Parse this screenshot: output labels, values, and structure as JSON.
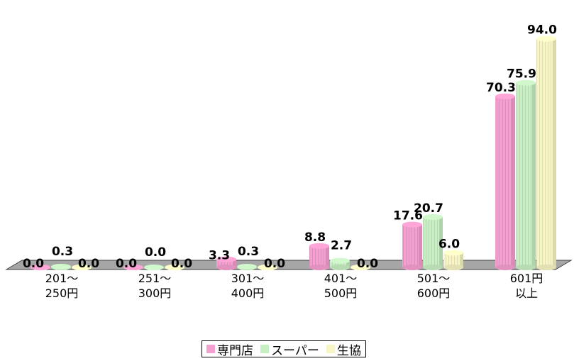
{
  "chart_data": {
    "type": "bar",
    "categories": [
      [
        "201〜",
        "250円"
      ],
      [
        "251〜",
        "300円"
      ],
      [
        "301〜",
        "400円"
      ],
      [
        "401〜",
        "500円"
      ],
      [
        "501〜",
        "600円"
      ],
      [
        "601円",
        "以上"
      ]
    ],
    "series": [
      {
        "name": "専門店",
        "values": [
          0.0,
          0.0,
          3.3,
          8.8,
          17.6,
          70.3
        ],
        "labels": [
          "0.0",
          "0.0",
          "3.3",
          "8.8",
          "17.6",
          "70.3"
        ],
        "color": "#f59fd0"
      },
      {
        "name": "スーパー",
        "values": [
          0.3,
          0.0,
          0.3,
          2.7,
          20.7,
          75.9
        ],
        "labels": [
          "0.3",
          "0.0",
          "0.3",
          "2.7",
          "20.7",
          "75.9"
        ],
        "color": "#c8eec4"
      },
      {
        "name": "生協",
        "values": [
          0.0,
          0.0,
          0.0,
          0.0,
          6.0,
          94.0
        ],
        "labels": [
          "0.0",
          "0.0",
          "0.0",
          "0.0",
          "6.0",
          "94.0"
        ],
        "color": "#f7f5c4"
      }
    ],
    "ylim": [
      0,
      100
    ],
    "legend_position": "bottom",
    "grid": false
  }
}
